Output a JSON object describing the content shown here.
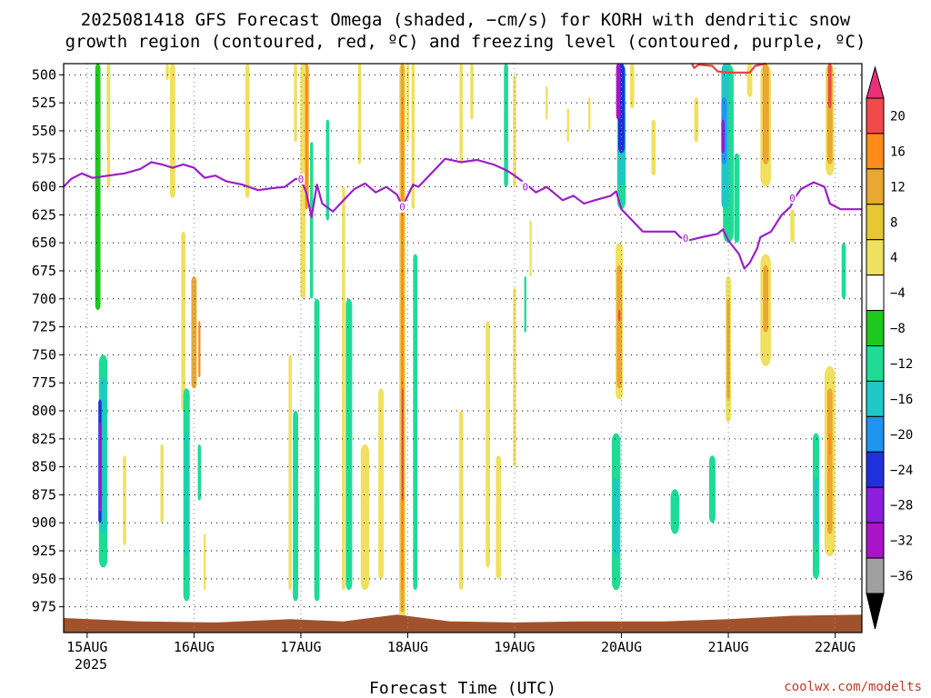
{
  "title_line1": "2025081418 GFS Forecast Omega (shaded, −cm/s) for KORH with dendritic snow",
  "title_line2": "growth region (contoured, red, ºC) and freezing level (contoured, purple, ºC)",
  "xlabel": "Forecast Time (UTC)",
  "year_label": "2025",
  "credit": "coolwx.com/modelts",
  "chart_data": {
    "type": "heatmap",
    "model": "GFS",
    "station": "KORH",
    "run": "2025081418",
    "x_ticks": [
      "15AUG",
      "16AUG",
      "17AUG",
      "18AUG",
      "19AUG",
      "20AUG",
      "21AUG",
      "22AUG"
    ],
    "x_range_days": [
      14.78,
      22.25
    ],
    "y_ticks": [
      500,
      525,
      550,
      575,
      600,
      625,
      650,
      675,
      700,
      725,
      750,
      775,
      800,
      825,
      850,
      875,
      900,
      925,
      950,
      975
    ],
    "y_range_hpa": [
      490,
      998
    ],
    "grid": true,
    "colorbar_ticks": [
      "20",
      "16",
      "12",
      "8",
      "4",
      "−4",
      "−8",
      "−12",
      "−16",
      "−20",
      "−24",
      "−28",
      "−32",
      "−36"
    ],
    "colorbar_colors": [
      "#f04a4a",
      "#ff8c1a",
      "#e8a832",
      "#e8c832",
      "#f0e060",
      "#ffffff",
      "#1ec81e",
      "#1edc96",
      "#1ec8c8",
      "#1e96f0",
      "#1e32dc",
      "#8c1edc",
      "#aa14c8",
      "#a0a0a0"
    ],
    "terrain_color": "#a0522d",
    "freezing_level": {
      "color": "#9b1fc8",
      "label": "0",
      "points": [
        [
          14.78,
          600
        ],
        [
          14.85,
          593
        ],
        [
          14.95,
          588
        ],
        [
          15.05,
          592
        ],
        [
          15.2,
          590
        ],
        [
          15.35,
          588
        ],
        [
          15.5,
          584
        ],
        [
          15.6,
          578
        ],
        [
          15.7,
          580
        ],
        [
          15.8,
          583
        ],
        [
          15.9,
          580
        ],
        [
          16.0,
          583
        ],
        [
          16.1,
          592
        ],
        [
          16.2,
          590
        ],
        [
          16.3,
          595
        ],
        [
          16.45,
          598
        ],
        [
          16.6,
          603
        ],
        [
          16.75,
          601
        ],
        [
          16.85,
          600
        ],
        [
          16.95,
          593
        ],
        [
          17.0,
          593
        ],
        [
          17.05,
          605
        ],
        [
          17.1,
          627
        ],
        [
          17.15,
          598
        ],
        [
          17.2,
          615
        ],
        [
          17.3,
          622
        ],
        [
          17.4,
          612
        ],
        [
          17.5,
          602
        ],
        [
          17.6,
          597
        ],
        [
          17.7,
          605
        ],
        [
          17.8,
          600
        ],
        [
          17.9,
          607
        ],
        [
          17.95,
          618
        ],
        [
          18.05,
          598
        ],
        [
          18.1,
          600
        ],
        [
          18.2,
          590
        ],
        [
          18.35,
          575
        ],
        [
          18.5,
          578
        ],
        [
          18.65,
          576
        ],
        [
          18.8,
          580
        ],
        [
          18.92,
          585
        ],
        [
          19.0,
          590
        ],
        [
          19.1,
          597
        ],
        [
          19.2,
          605
        ],
        [
          19.3,
          600
        ],
        [
          19.45,
          612
        ],
        [
          19.55,
          608
        ],
        [
          19.65,
          615
        ],
        [
          19.75,
          612
        ],
        [
          19.9,
          608
        ],
        [
          19.95,
          604
        ],
        [
          20.0,
          620
        ],
        [
          20.1,
          630
        ],
        [
          20.2,
          640
        ],
        [
          20.35,
          640
        ],
        [
          20.5,
          640
        ],
        [
          20.55,
          645
        ],
        [
          20.62,
          648
        ],
        [
          20.75,
          645
        ],
        [
          20.9,
          642
        ],
        [
          20.95,
          638
        ],
        [
          21.0,
          648
        ],
        [
          21.1,
          660
        ],
        [
          21.15,
          673
        ],
        [
          21.2,
          668
        ],
        [
          21.27,
          655
        ],
        [
          21.3,
          645
        ],
        [
          21.4,
          640
        ],
        [
          21.5,
          625
        ],
        [
          21.58,
          618
        ],
        [
          21.62,
          610
        ],
        [
          21.68,
          602
        ],
        [
          21.8,
          596
        ],
        [
          21.9,
          600
        ],
        [
          21.95,
          615
        ],
        [
          22.05,
          620
        ],
        [
          22.25,
          620
        ]
      ]
    },
    "dgz_contour": {
      "color": "#f04040",
      "points": [
        [
          20.66,
          490
        ],
        [
          20.68,
          494
        ],
        [
          20.72,
          491
        ],
        [
          20.85,
          492
        ],
        [
          20.9,
          497
        ],
        [
          21.0,
          498
        ],
        [
          21.2,
          498
        ],
        [
          21.25,
          492
        ],
        [
          21.35,
          490
        ]
      ]
    },
    "omega_patches": [
      {
        "t": 15.1,
        "p0": 490,
        "p1": 710,
        "w": 0.05,
        "v": -6
      },
      {
        "t": 15.2,
        "p0": 490,
        "p1": 560,
        "w": 0.03,
        "v": -6
      },
      {
        "t": 15.2,
        "p0": 490,
        "p1": 600,
        "w": 0.03,
        "v": 5
      },
      {
        "t": 15.8,
        "p0": 490,
        "p1": 610,
        "w": 0.05,
        "v": 5
      },
      {
        "t": 16.5,
        "p0": 490,
        "p1": 610,
        "w": 0.04,
        "v": 5
      },
      {
        "t": 15.75,
        "p0": 490,
        "p1": 505,
        "w": 0.03,
        "v": 5
      },
      {
        "t": 16.95,
        "p0": 490,
        "p1": 560,
        "w": 0.03,
        "v": 5
      },
      {
        "t": 17.55,
        "p0": 490,
        "p1": 580,
        "w": 0.03,
        "v": 5
      },
      {
        "t": 18.6,
        "p0": 490,
        "p1": 540,
        "w": 0.03,
        "v": 5
      },
      {
        "t": 19.3,
        "p0": 510,
        "p1": 540,
        "w": 0.02,
        "v": 5
      },
      {
        "t": 19.5,
        "p0": 530,
        "p1": 560,
        "w": 0.02,
        "v": 5
      },
      {
        "t": 19.7,
        "p0": 520,
        "p1": 550,
        "w": 0.02,
        "v": 5
      },
      {
        "t": 15.9,
        "p0": 640,
        "p1": 800,
        "w": 0.04,
        "v": 5
      },
      {
        "t": 16.0,
        "p0": 680,
        "p1": 780,
        "w": 0.05,
        "v": 8
      },
      {
        "t": 16.05,
        "p0": 720,
        "p1": 770,
        "w": 0.02,
        "v": 12
      },
      {
        "t": 17.05,
        "p0": 490,
        "p1": 620,
        "w": 0.05,
        "v": 8
      },
      {
        "t": 17.02,
        "p0": 490,
        "p1": 700,
        "w": 0.05,
        "v": 5
      },
      {
        "t": 17.05,
        "p0": 500,
        "p1": 620,
        "w": 0.02,
        "v": 14
      },
      {
        "t": 17.1,
        "p0": 560,
        "p1": 700,
        "w": 0.03,
        "v": -8
      },
      {
        "t": 17.25,
        "p0": 540,
        "p1": 630,
        "w": 0.03,
        "v": -8
      },
      {
        "t": 17.15,
        "p0": 700,
        "p1": 970,
        "w": 0.05,
        "v": -8
      },
      {
        "t": 16.95,
        "p0": 800,
        "p1": 970,
        "w": 0.05,
        "v": -8
      },
      {
        "t": 16.9,
        "p0": 750,
        "p1": 960,
        "w": 0.03,
        "v": 5
      },
      {
        "t": 17.4,
        "p0": 600,
        "p1": 960,
        "w": 0.03,
        "v": 5
      },
      {
        "t": 17.45,
        "p0": 700,
        "p1": 960,
        "w": 0.06,
        "v": -8
      },
      {
        "t": 17.6,
        "p0": 830,
        "p1": 960,
        "w": 0.08,
        "v": 5
      },
      {
        "t": 17.75,
        "p0": 780,
        "p1": 950,
        "w": 0.05,
        "v": 5
      },
      {
        "t": 17.95,
        "p0": 490,
        "p1": 990,
        "w": 0.06,
        "v": 5
      },
      {
        "t": 17.95,
        "p0": 490,
        "p1": 980,
        "w": 0.035,
        "v": 8
      },
      {
        "t": 17.95,
        "p0": 520,
        "p1": 960,
        "w": 0.02,
        "v": 14
      },
      {
        "t": 17.95,
        "p0": 780,
        "p1": 880,
        "w": 0.012,
        "v": 18
      },
      {
        "t": 18.05,
        "p0": 490,
        "p1": 620,
        "w": 0.03,
        "v": 5
      },
      {
        "t": 18.07,
        "p0": 660,
        "p1": 960,
        "w": 0.04,
        "v": -8
      },
      {
        "t": 18.0,
        "p0": 490,
        "p1": 560,
        "w": 0.025,
        "v": 5
      },
      {
        "t": 18.5,
        "p0": 800,
        "p1": 960,
        "w": 0.04,
        "v": 5
      },
      {
        "t": 18.75,
        "p0": 720,
        "p1": 940,
        "w": 0.04,
        "v": 5
      },
      {
        "t": 18.85,
        "p0": 840,
        "p1": 950,
        "w": 0.05,
        "v": 5
      },
      {
        "t": 18.5,
        "p0": 490,
        "p1": 580,
        "w": 0.03,
        "v": 5
      },
      {
        "t": 18.92,
        "p0": 490,
        "p1": 600,
        "w": 0.04,
        "v": -8
      },
      {
        "t": 19.0,
        "p0": 500,
        "p1": 600,
        "w": 0.03,
        "v": 5
      },
      {
        "t": 19.1,
        "p0": 680,
        "p1": 730,
        "w": 0.02,
        "v": -8
      },
      {
        "t": 19.0,
        "p0": 690,
        "p1": 850,
        "w": 0.03,
        "v": 5
      },
      {
        "t": 19.15,
        "p0": 630,
        "p1": 680,
        "w": 0.02,
        "v": 5
      },
      {
        "t": 20.0,
        "p0": 490,
        "p1": 620,
        "w": 0.08,
        "v": -8
      },
      {
        "t": 20.0,
        "p0": 490,
        "p1": 600,
        "w": 0.07,
        "v": -14
      },
      {
        "t": 20.0,
        "p0": 490,
        "p1": 570,
        "w": 0.06,
        "v": -20
      },
      {
        "t": 19.97,
        "p0": 490,
        "p1": 540,
        "w": 0.04,
        "v": -30
      },
      {
        "t": 20.1,
        "p0": 490,
        "p1": 530,
        "w": 0.04,
        "v": 5
      },
      {
        "t": 20.3,
        "p0": 540,
        "p1": 590,
        "w": 0.04,
        "v": 5
      },
      {
        "t": 19.98,
        "p0": 650,
        "p1": 790,
        "w": 0.07,
        "v": 5
      },
      {
        "t": 19.98,
        "p0": 670,
        "p1": 780,
        "w": 0.05,
        "v": 10
      },
      {
        "t": 19.98,
        "p0": 710,
        "p1": 720,
        "w": 0.02,
        "v": 18
      },
      {
        "t": 19.95,
        "p0": 820,
        "p1": 960,
        "w": 0.08,
        "v": -8
      },
      {
        "t": 19.95,
        "p0": 860,
        "p1": 930,
        "w": 0.05,
        "v": -12
      },
      {
        "t": 20.7,
        "p0": 520,
        "p1": 560,
        "w": 0.04,
        "v": 5
      },
      {
        "t": 21.0,
        "p0": 490,
        "p1": 650,
        "w": 0.1,
        "v": -8
      },
      {
        "t": 20.97,
        "p0": 490,
        "p1": 620,
        "w": 0.07,
        "v": -14
      },
      {
        "t": 20.96,
        "p0": 520,
        "p1": 580,
        "w": 0.05,
        "v": -18
      },
      {
        "t": 20.95,
        "p0": 540,
        "p1": 570,
        "w": 0.03,
        "v": -24
      },
      {
        "t": 21.08,
        "p0": 570,
        "p1": 650,
        "w": 0.05,
        "v": -8
      },
      {
        "t": 21.0,
        "p0": 680,
        "p1": 810,
        "w": 0.05,
        "v": 5
      },
      {
        "t": 21.0,
        "p0": 700,
        "p1": 790,
        "w": 0.03,
        "v": 10
      },
      {
        "t": 20.5,
        "p0": 870,
        "p1": 910,
        "w": 0.08,
        "v": -8
      },
      {
        "t": 20.85,
        "p0": 840,
        "p1": 900,
        "w": 0.06,
        "v": -8
      },
      {
        "t": 21.2,
        "p0": 490,
        "p1": 520,
        "w": 0.05,
        "v": 5
      },
      {
        "t": 21.35,
        "p0": 490,
        "p1": 600,
        "w": 0.1,
        "v": 5
      },
      {
        "t": 21.35,
        "p0": 490,
        "p1": 580,
        "w": 0.06,
        "v": 10
      },
      {
        "t": 21.35,
        "p0": 660,
        "p1": 760,
        "w": 0.1,
        "v": 5
      },
      {
        "t": 21.35,
        "p0": 670,
        "p1": 730,
        "w": 0.05,
        "v": 10
      },
      {
        "t": 21.6,
        "p0": 620,
        "p1": 650,
        "w": 0.04,
        "v": 5
      },
      {
        "t": 21.82,
        "p0": 820,
        "p1": 950,
        "w": 0.06,
        "v": -8
      },
      {
        "t": 21.82,
        "p0": 860,
        "p1": 920,
        "w": 0.03,
        "v": -12
      },
      {
        "t": 21.95,
        "p0": 490,
        "p1": 590,
        "w": 0.08,
        "v": 5
      },
      {
        "t": 21.95,
        "p0": 490,
        "p1": 580,
        "w": 0.05,
        "v": 10
      },
      {
        "t": 21.95,
        "p0": 490,
        "p1": 530,
        "w": 0.03,
        "v": 17
      },
      {
        "t": 21.95,
        "p0": 760,
        "p1": 930,
        "w": 0.1,
        "v": 5
      },
      {
        "t": 21.95,
        "p0": 780,
        "p1": 910,
        "w": 0.05,
        "v": 10
      },
      {
        "t": 21.95,
        "p0": 820,
        "p1": 840,
        "w": 0.02,
        "v": 14
      },
      {
        "t": 22.08,
        "p0": 650,
        "p1": 700,
        "w": 0.04,
        "v": -8
      },
      {
        "t": 15.15,
        "p0": 750,
        "p1": 940,
        "w": 0.08,
        "v": -8
      },
      {
        "t": 15.15,
        "p0": 770,
        "p1": 910,
        "w": 0.05,
        "v": -14
      },
      {
        "t": 15.12,
        "p0": 790,
        "p1": 900,
        "w": 0.03,
        "v": -22
      },
      {
        "t": 15.12,
        "p0": 810,
        "p1": 890,
        "w": 0.015,
        "v": -28
      },
      {
        "t": 15.35,
        "p0": 840,
        "p1": 920,
        "w": 0.03,
        "v": 5
      },
      {
        "t": 15.7,
        "p0": 830,
        "p1": 900,
        "w": 0.03,
        "v": 5
      },
      {
        "t": 15.93,
        "p0": 780,
        "p1": 970,
        "w": 0.06,
        "v": -8
      },
      {
        "t": 15.93,
        "p0": 820,
        "p1": 930,
        "w": 0.03,
        "v": -12
      },
      {
        "t": 16.05,
        "p0": 830,
        "p1": 880,
        "w": 0.03,
        "v": -8
      },
      {
        "t": 16.1,
        "p0": 910,
        "p1": 960,
        "w": 0.02,
        "v": 5
      }
    ]
  }
}
